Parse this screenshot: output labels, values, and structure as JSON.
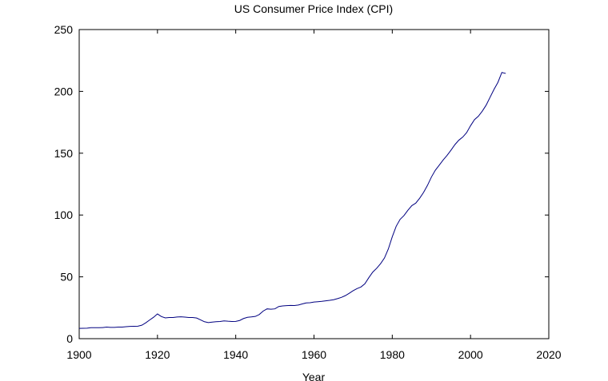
{
  "chart_data": {
    "type": "line",
    "title": "US Consumer Price Index (CPI)",
    "xlabel": "Year",
    "ylabel": "",
    "xlim": [
      1900,
      2020
    ],
    "ylim": [
      0,
      250
    ],
    "xticks": [
      1900,
      1920,
      1940,
      1960,
      1980,
      2000,
      2020
    ],
    "yticks": [
      0,
      50,
      100,
      150,
      200,
      250
    ],
    "grid": false,
    "legend": "none",
    "line_color": "#000080",
    "series": [
      {
        "x": [
          1900,
          1901,
          1902,
          1903,
          1904,
          1905,
          1906,
          1907,
          1908,
          1909,
          1910,
          1911,
          1912,
          1913,
          1914,
          1915,
          1916,
          1917,
          1918,
          1919,
          1920,
          1921,
          1922,
          1923,
          1924,
          1925,
          1926,
          1927,
          1928,
          1929,
          1930,
          1931,
          1932,
          1933,
          1934,
          1935,
          1936,
          1937,
          1938,
          1939,
          1940,
          1941,
          1942,
          1943,
          1944,
          1945,
          1946,
          1947,
          1948,
          1949,
          1950,
          1951,
          1952,
          1953,
          1954,
          1955,
          1956,
          1957,
          1958,
          1959,
          1960,
          1961,
          1962,
          1963,
          1964,
          1965,
          1966,
          1967,
          1968,
          1969,
          1970,
          1971,
          1972,
          1973,
          1974,
          1975,
          1976,
          1977,
          1978,
          1979,
          1980,
          1981,
          1982,
          1983,
          1984,
          1985,
          1986,
          1987,
          1988,
          1989,
          1990,
          1991,
          1992,
          1993,
          1994,
          1995,
          1996,
          1997,
          1998,
          1999,
          2000,
          2001,
          2002,
          2003,
          2004,
          2005,
          2006,
          2007,
          2008,
          2009
        ],
        "values": [
          8.3,
          8.4,
          8.5,
          8.9,
          8.9,
          8.9,
          9.0,
          9.4,
          9.1,
          9.1,
          9.4,
          9.4,
          9.7,
          9.9,
          10.0,
          10.1,
          10.9,
          12.8,
          15.1,
          17.3,
          20.0,
          17.9,
          16.8,
          17.1,
          17.1,
          17.5,
          17.7,
          17.4,
          17.1,
          17.1,
          16.7,
          15.2,
          13.7,
          13.0,
          13.4,
          13.7,
          13.9,
          14.4,
          14.1,
          13.9,
          14.0,
          14.7,
          16.3,
          17.3,
          17.6,
          18.0,
          19.5,
          22.3,
          24.1,
          23.8,
          24.1,
          26.0,
          26.5,
          26.7,
          26.9,
          26.8,
          27.2,
          28.1,
          28.9,
          29.1,
          29.6,
          29.9,
          30.2,
          30.6,
          31.0,
          31.5,
          32.4,
          33.4,
          34.8,
          36.7,
          38.8,
          40.5,
          41.8,
          44.4,
          49.3,
          53.8,
          56.9,
          60.6,
          65.2,
          72.6,
          82.4,
          90.9,
          96.5,
          99.6,
          103.9,
          107.6,
          109.6,
          113.6,
          118.3,
          124.0,
          130.7,
          136.2,
          140.3,
          144.5,
          148.2,
          152.4,
          156.9,
          160.5,
          163.0,
          166.6,
          172.2,
          177.1,
          179.9,
          184.0,
          188.9,
          195.3,
          201.6,
          207.3,
          215.3,
          214.5
        ]
      }
    ]
  }
}
